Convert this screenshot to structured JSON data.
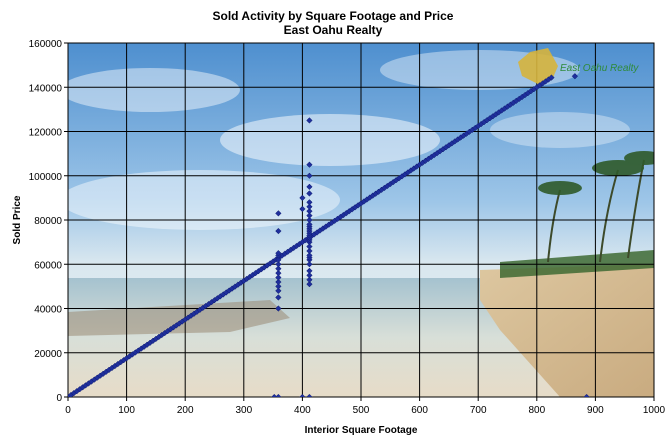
{
  "chart_data": {
    "type": "scatter",
    "title": "Sold Activity by Square Footage and Price",
    "subtitle": "East Oahu Realty",
    "xlabel": "Interior Square Footage",
    "ylabel": "Sold Price",
    "xlim": [
      0,
      1000
    ],
    "ylim": [
      0,
      160000
    ],
    "x_ticks": [
      "0",
      "100",
      "200",
      "300",
      "400",
      "500",
      "600",
      "700",
      "800",
      "900",
      "1000"
    ],
    "y_ticks": [
      "0",
      "20000",
      "40000",
      "60000",
      "80000",
      "100000",
      "120000",
      "140000",
      "160000"
    ],
    "grid": true,
    "legend": "none",
    "marker_color": "#1f2f9c",
    "background": "beach photograph",
    "logo_text": "East Oahu Realty",
    "series": [
      {
        "linear_trend": {
          "x_start": 0,
          "x_end": 825,
          "slope": 175,
          "step": 5
        },
        "points": [
          [
            352,
            0
          ],
          [
            359,
            0
          ],
          [
            400,
            0
          ],
          [
            412,
            0
          ],
          [
            885,
            0
          ],
          [
            865,
            145000
          ],
          [
            359,
            40000
          ],
          [
            359,
            45000
          ],
          [
            359,
            48000
          ],
          [
            359,
            50000
          ],
          [
            359,
            52000
          ],
          [
            359,
            54000
          ],
          [
            359,
            56000
          ],
          [
            359,
            58000
          ],
          [
            359,
            60000
          ],
          [
            359,
            62000
          ],
          [
            359,
            64000
          ],
          [
            359,
            65000
          ],
          [
            359,
            75000
          ],
          [
            359,
            83000
          ],
          [
            400,
            85000
          ],
          [
            400,
            90000
          ],
          [
            412,
            51000
          ],
          [
            412,
            53000
          ],
          [
            412,
            55000
          ],
          [
            412,
            57000
          ],
          [
            412,
            60000
          ],
          [
            412,
            62000
          ],
          [
            412,
            63000
          ],
          [
            412,
            64000
          ],
          [
            412,
            66000
          ],
          [
            412,
            68000
          ],
          [
            412,
            70000
          ],
          [
            412,
            71000
          ],
          [
            412,
            72000
          ],
          [
            412,
            73000
          ],
          [
            412,
            74000
          ],
          [
            412,
            75000
          ],
          [
            412,
            76000
          ],
          [
            412,
            77000
          ],
          [
            412,
            78000
          ],
          [
            412,
            80000
          ],
          [
            412,
            82000
          ],
          [
            412,
            84000
          ],
          [
            412,
            86000
          ],
          [
            412,
            88000
          ],
          [
            412,
            92000
          ],
          [
            412,
            95000
          ],
          [
            412,
            100000
          ],
          [
            412,
            105000
          ],
          [
            412,
            125000
          ]
        ]
      }
    ]
  }
}
